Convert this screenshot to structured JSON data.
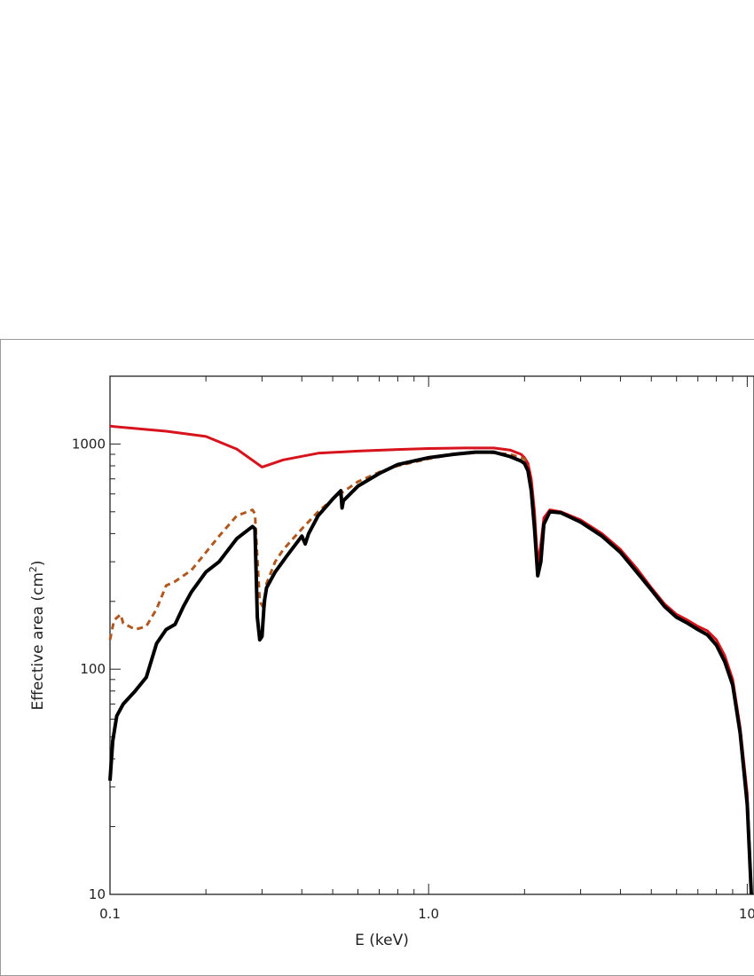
{
  "chart_data": {
    "type": "line",
    "title": "",
    "xlabel": "E (keV)",
    "ylabel_prefix": "Effective area (cm",
    "ylabel_sup": "2",
    "ylabel_suffix": ")",
    "x_scale": "log",
    "y_scale": "log",
    "xlim": [
      0.1,
      10.5
    ],
    "ylim": [
      10,
      2000
    ],
    "x_ticks": [
      {
        "value": 0.1,
        "label": "0.1"
      },
      {
        "value": 1.0,
        "label": "1.0"
      },
      {
        "value": 10,
        "label": "10"
      }
    ],
    "y_ticks": [
      {
        "value": 10,
        "label": "10"
      },
      {
        "value": 100,
        "label": "100"
      },
      {
        "value": 1000,
        "label": "1000"
      }
    ],
    "grid": false,
    "legend": "none",
    "series": [
      {
        "color": "#d7141d",
        "style": "solid",
        "points": [
          [
            0.1,
            1200
          ],
          [
            0.15,
            1140
          ],
          [
            0.2,
            1080
          ],
          [
            0.25,
            950
          ],
          [
            0.3,
            790
          ],
          [
            0.35,
            850
          ],
          [
            0.45,
            910
          ],
          [
            0.6,
            930
          ],
          [
            0.8,
            945
          ],
          [
            1.0,
            955
          ],
          [
            1.3,
            960
          ],
          [
            1.6,
            960
          ],
          [
            1.8,
            940
          ],
          [
            1.95,
            900
          ],
          [
            2.0,
            870
          ],
          [
            2.05,
            820
          ],
          [
            2.1,
            700
          ],
          [
            2.15,
            500
          ],
          [
            2.2,
            290
          ],
          [
            2.25,
            360
          ],
          [
            2.3,
            470
          ],
          [
            2.4,
            510
          ],
          [
            2.6,
            500
          ],
          [
            3.0,
            460
          ],
          [
            3.5,
            400
          ],
          [
            4.0,
            340
          ],
          [
            4.5,
            280
          ],
          [
            5.0,
            230
          ],
          [
            5.5,
            195
          ],
          [
            6.0,
            175
          ],
          [
            6.5,
            165
          ],
          [
            7.0,
            155
          ],
          [
            7.5,
            148
          ],
          [
            8.0,
            135
          ],
          [
            8.5,
            115
          ],
          [
            9.0,
            90
          ],
          [
            9.5,
            55
          ],
          [
            10.0,
            28
          ],
          [
            10.3,
            10
          ]
        ]
      },
      {
        "color": "#b0581f",
        "style": "dashed",
        "points": [
          [
            0.1,
            135
          ],
          [
            0.103,
            165
          ],
          [
            0.108,
            175
          ],
          [
            0.11,
            160
          ],
          [
            0.12,
            150
          ],
          [
            0.13,
            155
          ],
          [
            0.14,
            185
          ],
          [
            0.15,
            235
          ],
          [
            0.16,
            245
          ],
          [
            0.18,
            275
          ],
          [
            0.2,
            330
          ],
          [
            0.22,
            390
          ],
          [
            0.25,
            480
          ],
          [
            0.28,
            510
          ],
          [
            0.285,
            490
          ],
          [
            0.295,
            200
          ],
          [
            0.305,
            185
          ],
          [
            0.31,
            240
          ],
          [
            0.33,
            300
          ],
          [
            0.35,
            340
          ],
          [
            0.4,
            420
          ],
          [
            0.45,
            500
          ],
          [
            0.5,
            570
          ],
          [
            0.55,
            625
          ],
          [
            0.6,
            680
          ],
          [
            0.7,
            750
          ],
          [
            0.8,
            800
          ],
          [
            1.0,
            860
          ],
          [
            1.2,
            900
          ],
          [
            1.5,
            920
          ],
          [
            1.8,
            900
          ],
          [
            2.0,
            860
          ],
          [
            2.05,
            800
          ]
        ]
      },
      {
        "color": "#000000",
        "style": "solid",
        "points": [
          [
            0.1,
            32
          ],
          [
            0.102,
            48
          ],
          [
            0.105,
            62
          ],
          [
            0.11,
            70
          ],
          [
            0.12,
            80
          ],
          [
            0.13,
            92
          ],
          [
            0.14,
            130
          ],
          [
            0.15,
            150
          ],
          [
            0.16,
            158
          ],
          [
            0.17,
            190
          ],
          [
            0.18,
            220
          ],
          [
            0.2,
            270
          ],
          [
            0.22,
            300
          ],
          [
            0.25,
            380
          ],
          [
            0.28,
            430
          ],
          [
            0.285,
            420
          ],
          [
            0.29,
            170
          ],
          [
            0.295,
            135
          ],
          [
            0.3,
            140
          ],
          [
            0.305,
            200
          ],
          [
            0.31,
            230
          ],
          [
            0.33,
            270
          ],
          [
            0.36,
            320
          ],
          [
            0.4,
            390
          ],
          [
            0.41,
            360
          ],
          [
            0.42,
            400
          ],
          [
            0.45,
            480
          ],
          [
            0.5,
            570
          ],
          [
            0.53,
            620
          ],
          [
            0.535,
            520
          ],
          [
            0.54,
            560
          ],
          [
            0.6,
            650
          ],
          [
            0.7,
            740
          ],
          [
            0.8,
            810
          ],
          [
            1.0,
            870
          ],
          [
            1.2,
            900
          ],
          [
            1.4,
            920
          ],
          [
            1.6,
            920
          ],
          [
            1.8,
            880
          ],
          [
            1.95,
            840
          ],
          [
            2.0,
            820
          ],
          [
            2.05,
            760
          ],
          [
            2.1,
            620
          ],
          [
            2.15,
            420
          ],
          [
            2.2,
            260
          ],
          [
            2.25,
            300
          ],
          [
            2.3,
            440
          ],
          [
            2.4,
            500
          ],
          [
            2.6,
            495
          ],
          [
            3.0,
            450
          ],
          [
            3.5,
            390
          ],
          [
            4.0,
            330
          ],
          [
            4.5,
            270
          ],
          [
            5.0,
            225
          ],
          [
            5.5,
            190
          ],
          [
            6.0,
            170
          ],
          [
            6.5,
            160
          ],
          [
            7.0,
            150
          ],
          [
            7.5,
            142
          ],
          [
            8.0,
            128
          ],
          [
            8.5,
            108
          ],
          [
            9.0,
            85
          ],
          [
            9.5,
            52
          ],
          [
            10.0,
            25
          ],
          [
            10.3,
            10
          ]
        ]
      }
    ]
  }
}
